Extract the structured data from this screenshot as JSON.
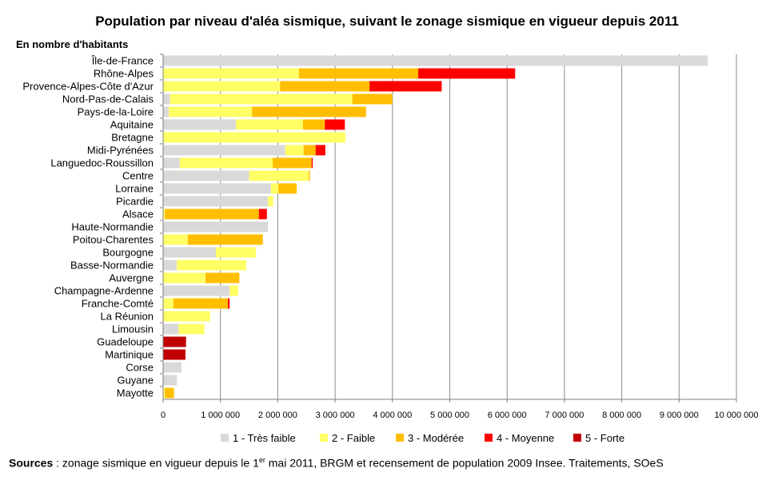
{
  "chart_data": {
    "type": "bar",
    "orientation": "horizontal",
    "stacked": true,
    "title": "Population par niveau d'aléa sismique, suivant le zonage sismique en vigueur depuis 2011",
    "subtitle": "En nombre d'habitants",
    "categories": [
      "Île-de-France",
      "Rhône-Alpes",
      "Provence-Alpes-Côte d'Azur",
      "Nord-Pas-de-Calais",
      "Pays-de-la-Loire",
      "Aquitaine",
      "Bretagne",
      "Midi-Pyrénées",
      "Languedoc-Roussillon",
      "Centre",
      "Lorraine",
      "Picardie",
      "Alsace",
      "Haute-Normandie",
      "Poitou-Charentes",
      "Bourgogne",
      "Basse-Normandie",
      "Auvergne",
      "Champagne-Ardenne",
      "Franche-Comté",
      "La Réunion",
      "Limousin",
      "Guadeloupe",
      "Martinique",
      "Corse",
      "Guyane",
      "Mayotte"
    ],
    "series": [
      {
        "name": "1 - Très faible",
        "color": "#d9d9d9",
        "values": [
          9500000,
          0,
          0,
          120000,
          100000,
          1270000,
          0,
          2130000,
          290000,
          1500000,
          1880000,
          1830000,
          0,
          1830000,
          0,
          920000,
          240000,
          0,
          1160000,
          0,
          0,
          270000,
          0,
          0,
          320000,
          240000,
          0
        ]
      },
      {
        "name": "2 - Faible",
        "color": "#ffff66",
        "values": [
          0,
          2370000,
          2040000,
          3180000,
          1450000,
          1170000,
          3180000,
          320000,
          1620000,
          1040000,
          130000,
          90000,
          30000,
          0,
          430000,
          700000,
          1210000,
          740000,
          150000,
          180000,
          820000,
          450000,
          0,
          0,
          0,
          0,
          30000
        ]
      },
      {
        "name": "3 - Modérée",
        "color": "#ffbf00",
        "values": [
          0,
          2080000,
          1560000,
          700000,
          1990000,
          380000,
          0,
          210000,
          680000,
          20000,
          320000,
          0,
          1640000,
          0,
          1310000,
          0,
          0,
          590000,
          0,
          950000,
          0,
          0,
          0,
          0,
          0,
          0,
          160000
        ]
      },
      {
        "name": "4 - Moyenne",
        "color": "#ff0000",
        "values": [
          0,
          1690000,
          1260000,
          0,
          0,
          350000,
          0,
          170000,
          20000,
          0,
          0,
          0,
          140000,
          0,
          0,
          0,
          0,
          0,
          0,
          30000,
          0,
          0,
          0,
          0,
          0,
          0,
          0
        ]
      },
      {
        "name": "5 - Forte",
        "color": "#c00000",
        "values": [
          0,
          0,
          0,
          0,
          0,
          0,
          0,
          0,
          0,
          0,
          0,
          0,
          0,
          0,
          0,
          0,
          0,
          0,
          0,
          0,
          0,
          0,
          400000,
          390000,
          0,
          0,
          0
        ]
      }
    ],
    "x_ticks": [
      "0",
      "1 000 000",
      "2 000 000",
      "3 000 000",
      "4 000 000",
      "5 000 000",
      "6 000 000",
      "7 000 000",
      "8 000 000",
      "9 000 000",
      "10 000 000"
    ],
    "xlim": [
      0,
      10000000
    ],
    "grid": true,
    "legend_position": "bottom"
  },
  "source": {
    "label": "Sources",
    "text_before": " : zonage sismique en vigueur depuis le 1",
    "superscript": "er",
    "text_after": " mai 2011, BRGM et recensement de population 2009 Insee. Traitements, SOeS"
  }
}
